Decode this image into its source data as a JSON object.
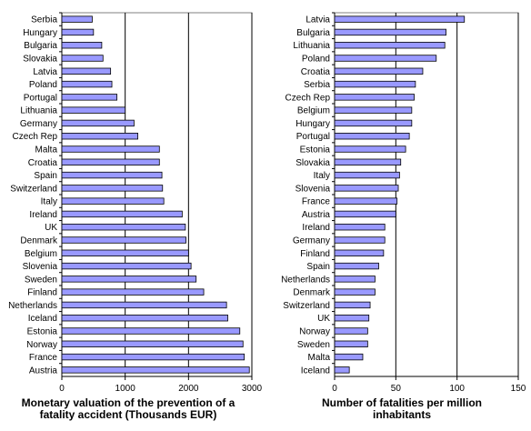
{
  "chart_data": [
    {
      "type": "bar",
      "orientation": "horizontal",
      "xlabel_lines": [
        "Monetary valuation of the prevention of a",
        "fatality accident (Thousands EUR)"
      ],
      "xlim": [
        0,
        3000
      ],
      "xticks": [
        0,
        1000,
        2000,
        3000
      ],
      "grid": "vertical",
      "bar_color": "#9999ff",
      "categories": [
        "Serbia",
        "Hungary",
        "Bulgaria",
        "Slovakia",
        "Latvia",
        "Poland",
        "Portugal",
        "Lithuania",
        "Germany",
        "Czech Rep",
        "Malta",
        "Croatia",
        "Spain",
        "Switzerland",
        "Italy",
        "Ireland",
        "UK",
        "Denmark",
        "Belgium",
        "Slovenia",
        "Sweden",
        "Finland",
        "Netherlands",
        "Iceland",
        "Estonia",
        "Norway",
        "France",
        "Austria"
      ],
      "values": [
        480,
        500,
        630,
        650,
        770,
        790,
        870,
        1000,
        1140,
        1200,
        1540,
        1540,
        1580,
        1590,
        1610,
        1900,
        1950,
        1960,
        2000,
        2040,
        2120,
        2240,
        2600,
        2620,
        2810,
        2860,
        2880,
        2960
      ]
    },
    {
      "type": "bar",
      "orientation": "horizontal",
      "xlabel_lines": [
        "Number of fatalities per million",
        "inhabitants"
      ],
      "xlim": [
        0,
        150
      ],
      "xticks": [
        0,
        50,
        100,
        150
      ],
      "grid": "vertical",
      "bar_color": "#9999ff",
      "categories": [
        "Latvia",
        "Bulgaria",
        "Lithuania",
        "Poland",
        "Croatia",
        "Serbia",
        "Czech Rep",
        "Belgium",
        "Hungary",
        "Portugal",
        "Estonia",
        "Slovakia",
        "Italy",
        "Slovenia",
        "France",
        "Austria",
        "Ireland",
        "Germany",
        "Finland",
        "Spain",
        "Netherlands",
        "Denmark",
        "Switzerland",
        "UK",
        "Norway",
        "Sweden",
        "Malta",
        "Iceland"
      ],
      "values": [
        106,
        91,
        90,
        83,
        72,
        66,
        65,
        63,
        63,
        61,
        58,
        54,
        53,
        52,
        51,
        50,
        41,
        41,
        40,
        36,
        33,
        33,
        29,
        28,
        27,
        27,
        23,
        12
      ]
    }
  ]
}
